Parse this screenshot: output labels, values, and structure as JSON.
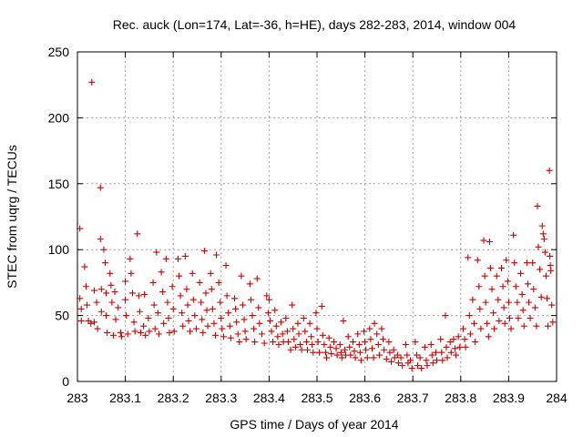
{
  "chart_data": {
    "type": "scatter",
    "title": "Rec. auck (Lon=174, Lat=-36, h=HE), days 282-283, 2014, window 004",
    "xlabel": "GPS time / Days of year 2014",
    "ylabel": "STEC from uqrg / TECUs",
    "xlim": [
      283,
      284
    ],
    "ylim": [
      0,
      250
    ],
    "xticks": [
      "283",
      "283.1",
      "283.2",
      "283.3",
      "283.4",
      "283.5",
      "283.6",
      "283.7",
      "283.8",
      "283.9",
      "284"
    ],
    "yticks": [
      "0",
      "50",
      "100",
      "150",
      "200",
      "250"
    ],
    "grid": true,
    "marker": "+",
    "color": "#cc0000",
    "series": [
      {
        "points": [
          [
            283.005,
            116
          ],
          [
            283.005,
            63
          ],
          [
            283.008,
            55
          ],
          [
            283.008,
            46
          ],
          [
            283.015,
            87
          ],
          [
            283.018,
            72
          ],
          [
            283.02,
            58
          ],
          [
            283.023,
            46
          ],
          [
            283.028,
            44
          ],
          [
            283.03,
            227
          ],
          [
            283.035,
            69
          ],
          [
            283.035,
            45
          ],
          [
            283.04,
            60
          ],
          [
            283.042,
            40
          ],
          [
            283.048,
            147
          ],
          [
            283.048,
            108
          ],
          [
            283.05,
            70
          ],
          [
            283.05,
            53
          ],
          [
            283.055,
            100
          ],
          [
            283.058,
            90
          ],
          [
            283.06,
            67
          ],
          [
            283.06,
            50
          ],
          [
            283.062,
            37
          ],
          [
            283.068,
            82
          ],
          [
            283.07,
            73
          ],
          [
            283.072,
            60
          ],
          [
            283.075,
            35
          ],
          [
            283.078,
            68
          ],
          [
            283.08,
            47
          ],
          [
            283.085,
            56
          ],
          [
            283.09,
            37
          ],
          [
            283.092,
            34
          ],
          [
            283.1,
            76
          ],
          [
            283.1,
            62
          ],
          [
            283.102,
            50
          ],
          [
            283.105,
            36
          ],
          [
            283.11,
            93
          ],
          [
            283.112,
            82
          ],
          [
            283.115,
            67
          ],
          [
            283.118,
            45
          ],
          [
            283.12,
            38
          ],
          [
            283.125,
            112
          ],
          [
            283.128,
            65
          ],
          [
            283.13,
            53
          ],
          [
            283.132,
            37
          ],
          [
            283.138,
            42
          ],
          [
            283.14,
            66
          ],
          [
            283.142,
            35
          ],
          [
            283.148,
            48
          ],
          [
            283.15,
            38
          ],
          [
            283.158,
            75
          ],
          [
            283.16,
            58
          ],
          [
            283.162,
            40
          ],
          [
            283.165,
            98
          ],
          [
            283.168,
            52
          ],
          [
            283.17,
            36
          ],
          [
            283.175,
            83
          ],
          [
            283.178,
            68
          ],
          [
            283.18,
            44
          ],
          [
            283.185,
            93
          ],
          [
            283.188,
            60
          ],
          [
            283.19,
            48
          ],
          [
            283.192,
            37
          ],
          [
            283.198,
            72
          ],
          [
            283.2,
            55
          ],
          [
            283.202,
            38
          ],
          [
            283.21,
            93
          ],
          [
            283.212,
            80
          ],
          [
            283.215,
            65
          ],
          [
            283.218,
            52
          ],
          [
            283.22,
            42
          ],
          [
            283.225,
            95
          ],
          [
            283.228,
            70
          ],
          [
            283.23,
            58
          ],
          [
            283.232,
            46
          ],
          [
            283.235,
            38
          ],
          [
            283.24,
            82
          ],
          [
            283.242,
            62
          ],
          [
            283.245,
            50
          ],
          [
            283.248,
            40
          ],
          [
            283.255,
            75
          ],
          [
            283.258,
            60
          ],
          [
            283.26,
            47
          ],
          [
            283.262,
            37
          ],
          [
            283.265,
            99
          ],
          [
            283.268,
            67
          ],
          [
            283.27,
            54
          ],
          [
            283.272,
            42
          ],
          [
            283.278,
            82
          ],
          [
            283.28,
            70
          ],
          [
            283.282,
            55
          ],
          [
            283.285,
            44
          ],
          [
            283.288,
            35
          ],
          [
            283.29,
            96
          ],
          [
            283.295,
            75
          ],
          [
            283.298,
            60
          ],
          [
            283.3,
            48
          ],
          [
            283.302,
            40
          ],
          [
            283.305,
            34
          ],
          [
            283.31,
            88
          ],
          [
            283.312,
            65
          ],
          [
            283.315,
            52
          ],
          [
            283.318,
            42
          ],
          [
            283.32,
            33
          ],
          [
            283.328,
            63
          ],
          [
            283.33,
            55
          ],
          [
            283.332,
            45
          ],
          [
            283.335,
            36
          ],
          [
            283.338,
            30
          ],
          [
            283.342,
            80
          ],
          [
            283.345,
            58
          ],
          [
            283.348,
            47
          ],
          [
            283.35,
            38
          ],
          [
            283.352,
            32
          ],
          [
            283.36,
            74
          ],
          [
            283.362,
            62
          ],
          [
            283.365,
            50
          ],
          [
            283.368,
            40
          ],
          [
            283.37,
            30
          ],
          [
            283.375,
            78
          ],
          [
            283.378,
            56
          ],
          [
            283.38,
            44
          ],
          [
            283.385,
            36
          ],
          [
            283.39,
            29
          ],
          [
            283.395,
            65
          ],
          [
            283.398,
            52
          ],
          [
            283.4,
            62
          ],
          [
            283.402,
            46
          ],
          [
            283.405,
            38
          ],
          [
            283.408,
            30
          ],
          [
            283.412,
            54
          ],
          [
            283.415,
            42
          ],
          [
            283.418,
            34
          ],
          [
            283.42,
            28
          ],
          [
            283.425,
            45
          ],
          [
            283.428,
            36
          ],
          [
            283.43,
            30
          ],
          [
            283.435,
            48
          ],
          [
            283.438,
            38
          ],
          [
            283.44,
            30
          ],
          [
            283.445,
            24
          ],
          [
            283.448,
            58
          ],
          [
            283.45,
            40
          ],
          [
            283.452,
            32
          ],
          [
            283.455,
            26
          ],
          [
            283.46,
            44
          ],
          [
            283.462,
            36
          ],
          [
            283.465,
            28
          ],
          [
            283.468,
            24
          ],
          [
            283.472,
            48
          ],
          [
            283.475,
            38
          ],
          [
            283.478,
            30
          ],
          [
            283.48,
            24
          ],
          [
            283.485,
            44
          ],
          [
            283.488,
            34
          ],
          [
            283.49,
            28
          ],
          [
            283.492,
            22
          ],
          [
            283.498,
            52
          ],
          [
            283.5,
            40
          ],
          [
            283.502,
            30
          ],
          [
            283.505,
            22
          ],
          [
            283.51,
            57
          ],
          [
            283.512,
            35
          ],
          [
            283.515,
            28
          ],
          [
            283.518,
            22
          ],
          [
            283.52,
            18
          ],
          [
            283.525,
            33
          ],
          [
            283.528,
            26
          ],
          [
            283.53,
            21
          ],
          [
            283.535,
            30
          ],
          [
            283.54,
            25
          ],
          [
            283.542,
            20
          ],
          [
            283.548,
            28
          ],
          [
            283.55,
            22
          ],
          [
            283.552,
            18
          ],
          [
            283.555,
            46
          ],
          [
            283.558,
            24
          ],
          [
            283.56,
            20
          ],
          [
            283.565,
            34
          ],
          [
            283.568,
            26
          ],
          [
            283.57,
            20
          ],
          [
            283.575,
            30
          ],
          [
            283.578,
            23
          ],
          [
            283.58,
            18
          ],
          [
            283.585,
            36
          ],
          [
            283.588,
            28
          ],
          [
            283.59,
            22
          ],
          [
            283.592,
            16
          ],
          [
            283.598,
            38
          ],
          [
            283.6,
            30
          ],
          [
            283.602,
            24
          ],
          [
            283.605,
            18
          ],
          [
            283.61,
            40
          ],
          [
            283.612,
            32
          ],
          [
            283.615,
            25
          ],
          [
            283.618,
            18
          ],
          [
            283.62,
            44
          ],
          [
            283.625,
            36
          ],
          [
            283.628,
            28
          ],
          [
            283.63,
            20
          ],
          [
            283.635,
            40
          ],
          [
            283.638,
            32
          ],
          [
            283.64,
            24
          ],
          [
            283.645,
            17
          ],
          [
            283.65,
            30
          ],
          [
            283.652,
            22
          ],
          [
            283.655,
            15
          ],
          [
            283.66,
            24
          ],
          [
            283.662,
            18
          ],
          [
            283.668,
            20
          ],
          [
            283.67,
            14
          ],
          [
            283.675,
            18
          ],
          [
            283.678,
            12
          ],
          [
            283.685,
            28
          ],
          [
            283.688,
            20
          ],
          [
            283.69,
            14
          ],
          [
            283.695,
            16
          ],
          [
            283.698,
            10
          ],
          [
            283.705,
            30
          ],
          [
            283.708,
            20
          ],
          [
            283.71,
            12
          ],
          [
            283.715,
            18
          ],
          [
            283.718,
            10
          ],
          [
            283.725,
            26
          ],
          [
            283.728,
            16
          ],
          [
            283.73,
            12
          ],
          [
            283.738,
            28
          ],
          [
            283.74,
            20
          ],
          [
            283.742,
            14
          ],
          [
            283.748,
            22
          ],
          [
            283.75,
            16
          ],
          [
            283.758,
            32
          ],
          [
            283.76,
            22
          ],
          [
            283.762,
            16
          ],
          [
            283.768,
            50
          ],
          [
            283.77,
            26
          ],
          [
            283.772,
            18
          ],
          [
            283.778,
            30
          ],
          [
            283.78,
            22
          ],
          [
            283.785,
            32
          ],
          [
            283.788,
            25
          ],
          [
            283.79,
            20
          ],
          [
            283.795,
            34
          ],
          [
            283.798,
            26
          ],
          [
            283.805,
            40
          ],
          [
            283.808,
            32
          ],
          [
            283.81,
            26
          ],
          [
            283.815,
            94
          ],
          [
            283.818,
            50
          ],
          [
            283.82,
            36
          ],
          [
            283.825,
            62
          ],
          [
            283.828,
            44
          ],
          [
            283.83,
            30
          ],
          [
            283.835,
            92
          ],
          [
            283.838,
            72
          ],
          [
            283.84,
            55
          ],
          [
            283.842,
            40
          ],
          [
            283.848,
            107
          ],
          [
            283.85,
            80
          ],
          [
            283.852,
            60
          ],
          [
            283.855,
            44
          ],
          [
            283.858,
            34
          ],
          [
            283.86,
            106
          ],
          [
            283.862,
            86
          ],
          [
            283.865,
            70
          ],
          [
            283.868,
            52
          ],
          [
            283.87,
            40
          ],
          [
            283.875,
            80
          ],
          [
            283.878,
            62
          ],
          [
            283.88,
            46
          ],
          [
            283.885,
            86
          ],
          [
            283.888,
            72
          ],
          [
            283.89,
            56
          ],
          [
            283.892,
            44
          ],
          [
            283.895,
            92
          ],
          [
            283.898,
            76
          ],
          [
            283.9,
            60
          ],
          [
            283.902,
            48
          ],
          [
            283.905,
            40
          ],
          [
            283.91,
            111
          ],
          [
            283.912,
            90
          ],
          [
            283.915,
            72
          ],
          [
            283.918,
            60
          ],
          [
            283.92,
            48
          ],
          [
            283.925,
            82
          ],
          [
            283.928,
            66
          ],
          [
            283.93,
            54
          ],
          [
            283.932,
            42
          ],
          [
            283.938,
            90
          ],
          [
            283.94,
            74
          ],
          [
            283.942,
            60
          ],
          [
            283.945,
            48
          ],
          [
            283.95,
            90
          ],
          [
            283.952,
            70
          ],
          [
            283.955,
            56
          ],
          [
            283.958,
            42
          ],
          [
            283.96,
            133
          ],
          [
            283.962,
            102
          ],
          [
            283.965,
            85
          ],
          [
            283.968,
            64
          ],
          [
            283.97,
            118
          ],
          [
            283.972,
            112
          ],
          [
            283.974,
            108
          ],
          [
            283.976,
            98
          ],
          [
            283.978,
            80
          ],
          [
            283.98,
            63
          ],
          [
            283.982,
            42
          ],
          [
            283.985,
            160
          ],
          [
            283.986,
            95
          ],
          [
            283.987,
            88
          ],
          [
            283.988,
            84
          ],
          [
            283.99,
            58
          ],
          [
            283.992,
            45
          ]
        ]
      }
    ]
  }
}
